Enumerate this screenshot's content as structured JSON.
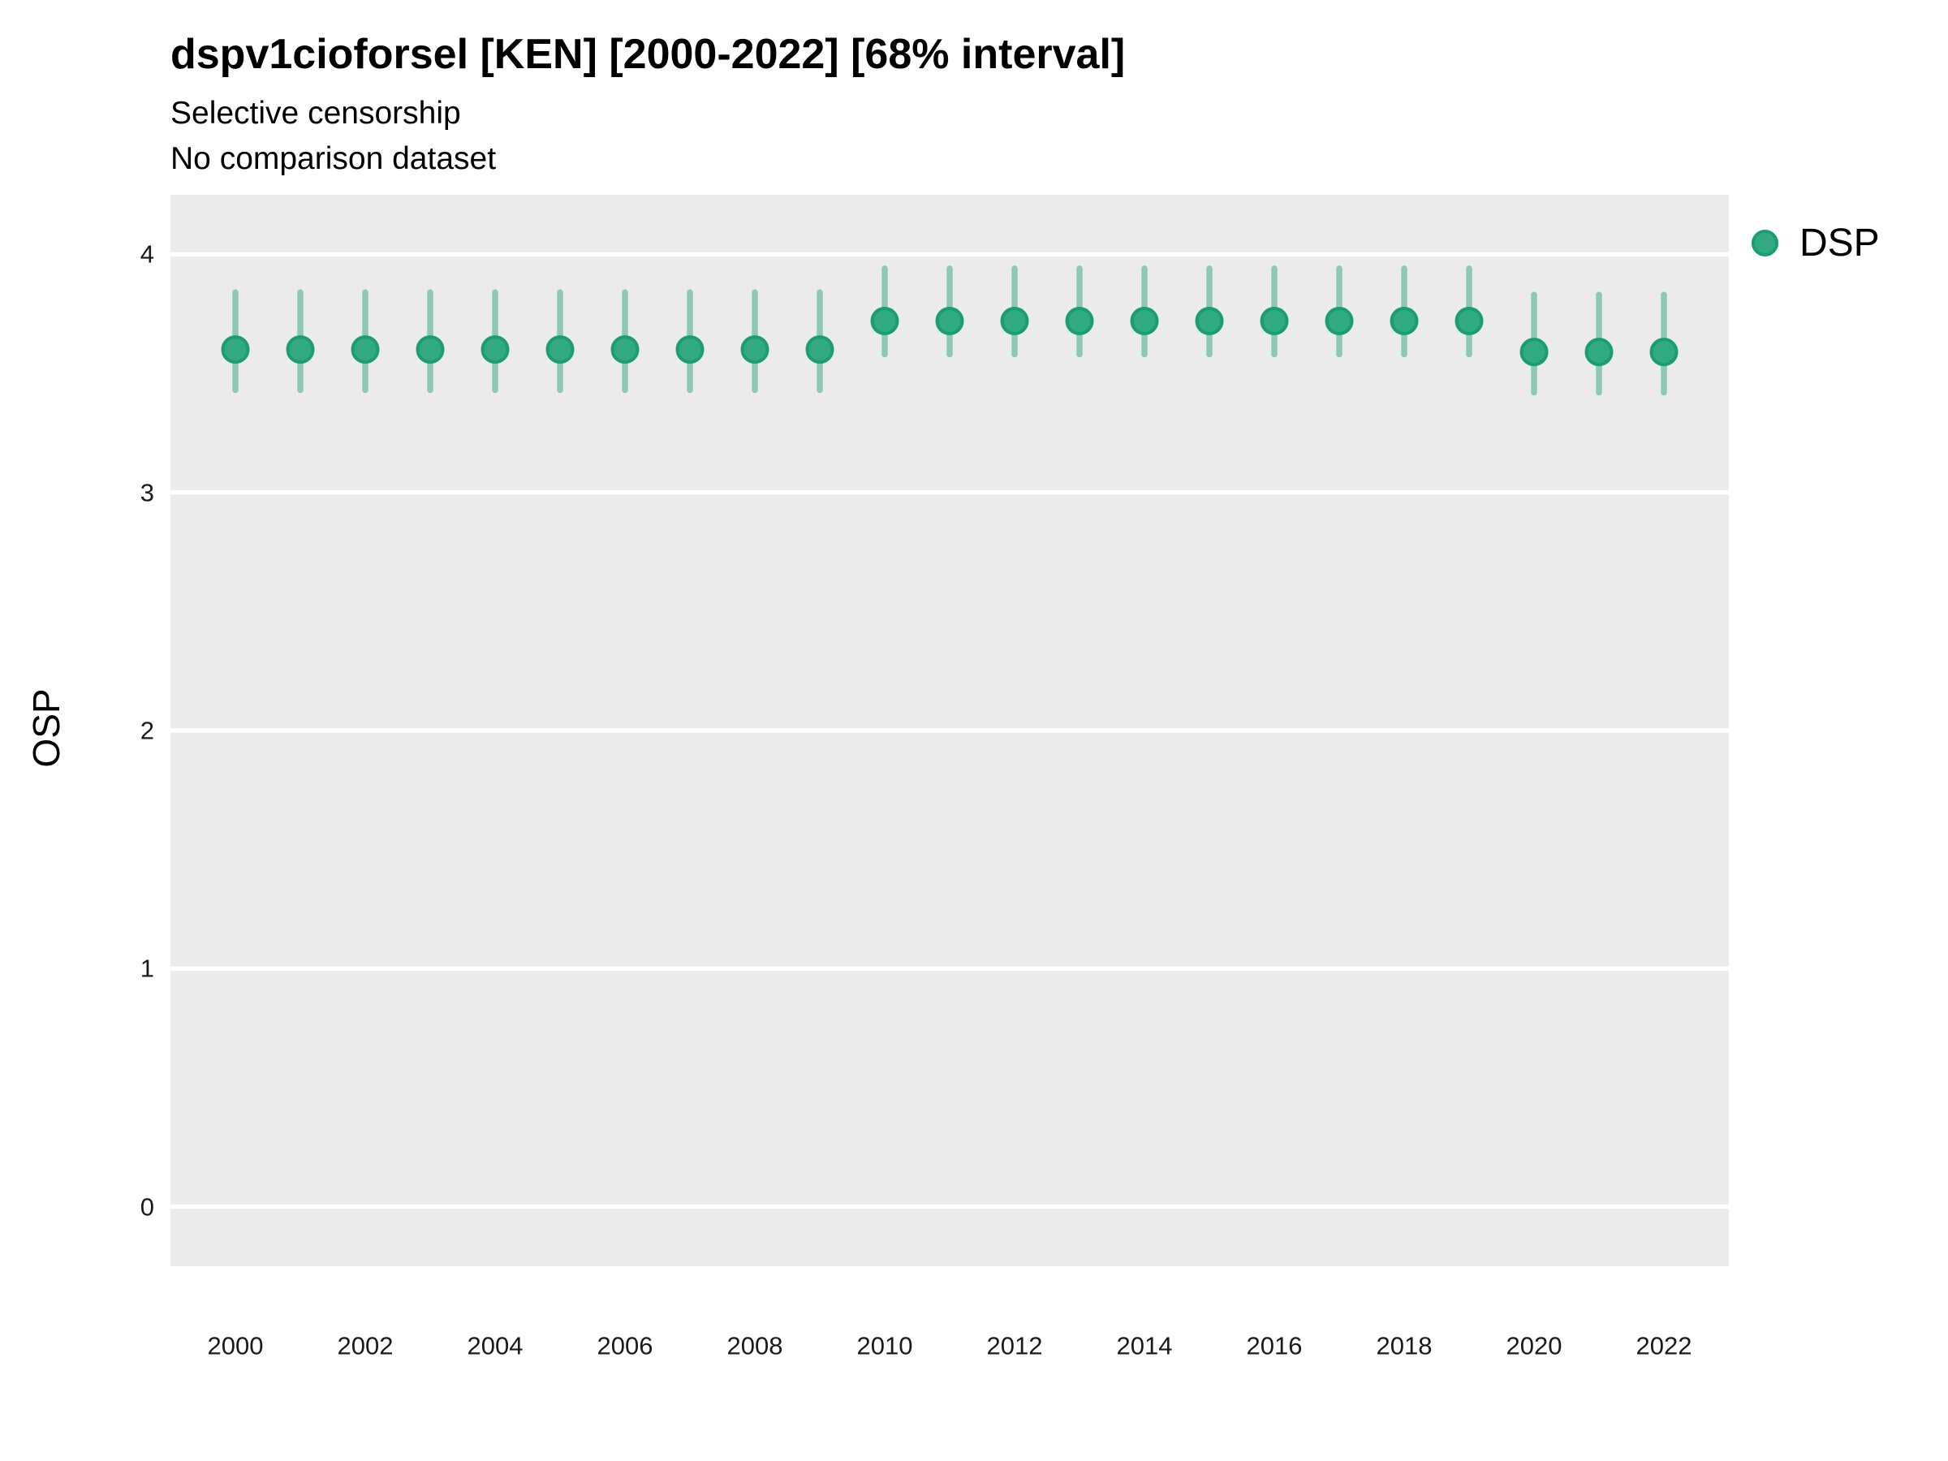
{
  "chart": {
    "title": "dspv1cioforsel [KEN] [2000-2022] [68% interval]",
    "subtitle_line1": "Selective censorship",
    "subtitle_line2": "No comparison dataset",
    "ylabel": "OSP",
    "legend": {
      "label": "DSP"
    }
  },
  "chart_data": {
    "type": "scatter",
    "title": "dspv1cioforsel [KEN] [2000-2022] [68% interval]",
    "subtitle": [
      "Selective censorship",
      "No comparison dataset"
    ],
    "xlabel": "",
    "ylabel": "OSP",
    "x_range": [
      1999,
      2023
    ],
    "y_range": [
      -0.25,
      4.25
    ],
    "x_ticks": [
      2000,
      2002,
      2004,
      2006,
      2008,
      2010,
      2012,
      2014,
      2016,
      2018,
      2020,
      2022
    ],
    "y_ticks": [
      0,
      1,
      2,
      3,
      4
    ],
    "grid": "major-horizontal-white-on-gray",
    "legend_position": "right",
    "interval_label": "68% interval",
    "series": [
      {
        "name": "DSP",
        "x": [
          2000,
          2001,
          2002,
          2003,
          2004,
          2005,
          2006,
          2007,
          2008,
          2009,
          2010,
          2011,
          2012,
          2013,
          2014,
          2015,
          2016,
          2017,
          2018,
          2019,
          2020,
          2021,
          2022
        ],
        "y": [
          3.6,
          3.6,
          3.6,
          3.6,
          3.6,
          3.6,
          3.6,
          3.6,
          3.6,
          3.6,
          3.72,
          3.72,
          3.72,
          3.72,
          3.72,
          3.72,
          3.72,
          3.72,
          3.72,
          3.72,
          3.59,
          3.59,
          3.59
        ],
        "y_lo": [
          3.43,
          3.43,
          3.43,
          3.43,
          3.43,
          3.43,
          3.43,
          3.43,
          3.43,
          3.43,
          3.58,
          3.58,
          3.58,
          3.58,
          3.58,
          3.58,
          3.58,
          3.58,
          3.58,
          3.58,
          3.42,
          3.42,
          3.42
        ],
        "y_hi": [
          3.84,
          3.84,
          3.84,
          3.84,
          3.84,
          3.84,
          3.84,
          3.84,
          3.84,
          3.84,
          3.94,
          3.94,
          3.94,
          3.94,
          3.94,
          3.94,
          3.94,
          3.94,
          3.94,
          3.94,
          3.83,
          3.83,
          3.83
        ]
      }
    ],
    "colors": {
      "point_fill": "#31aa84",
      "point_stroke": "#189e71",
      "interval_bar": "#8dc8b7",
      "panel_bg": "#ebebeb",
      "gridline": "#ffffff"
    }
  }
}
